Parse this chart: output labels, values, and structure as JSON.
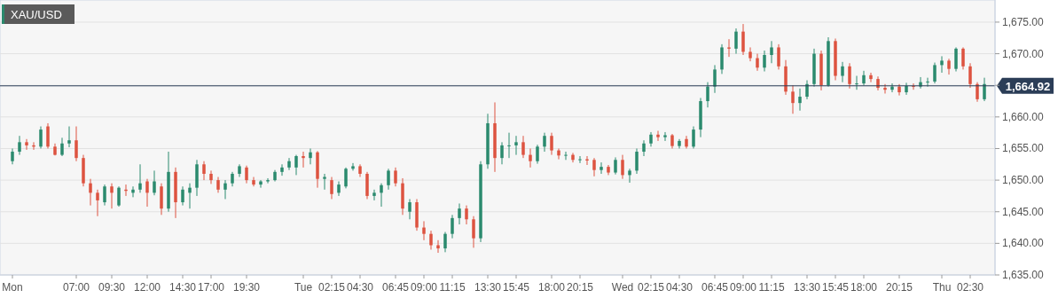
{
  "chart_data": {
    "type": "candlestick",
    "title": "XAU/USD",
    "categories": [
      "Mon",
      null,
      null,
      null,
      null,
      null,
      null,
      null,
      null,
      "07:00",
      null,
      null,
      null,
      null,
      "09:30",
      null,
      null,
      null,
      null,
      "12:00",
      null,
      null,
      null,
      null,
      "14:30",
      null,
      null,
      null,
      "17:00",
      null,
      null,
      null,
      null,
      "19:30",
      null,
      null,
      null,
      null,
      null,
      null,
      null,
      "Tue",
      null,
      null,
      null,
      "02:15",
      null,
      null,
      null,
      "04:30",
      null,
      null,
      null,
      null,
      "06:45",
      null,
      null,
      null,
      "09:00",
      null,
      null,
      null,
      "11:15",
      null,
      null,
      null,
      null,
      "13:30",
      null,
      null,
      null,
      "15:45",
      null,
      null,
      null,
      null,
      "18:00",
      null,
      null,
      null,
      "20:15",
      null,
      null,
      null,
      null,
      null,
      "Wed",
      null,
      null,
      null,
      "02:15",
      null,
      null,
      null,
      "04:30",
      null,
      null,
      null,
      null,
      "06:45",
      null,
      null,
      null,
      "09:00",
      null,
      null,
      null,
      "11:15",
      null,
      null,
      null,
      null,
      "13:30",
      null,
      null,
      null,
      "15:45",
      null,
      null,
      null,
      "18:00",
      null,
      null,
      null,
      null,
      "20:15",
      null,
      null,
      null,
      null,
      null,
      "Thu",
      null,
      null,
      null,
      "02:30",
      null,
      null
    ],
    "ohlc": [
      [
        1653,
        1655,
        1652.5,
        1654.5
      ],
      [
        1654.5,
        1657,
        1654,
        1656
      ],
      [
        1656,
        1656.5,
        1654.8,
        1655.5
      ],
      [
        1655.5,
        1656,
        1654.8,
        1655.3
      ],
      [
        1655.3,
        1658.5,
        1655,
        1658
      ],
      [
        1658.5,
        1659,
        1655,
        1655.3
      ],
      [
        1655.3,
        1655.8,
        1653.9,
        1654
      ],
      [
        1654,
        1656.7,
        1653.8,
        1655.8
      ],
      [
        1655.8,
        1658.5,
        1655.2,
        1656.3
      ],
      [
        1656.3,
        1658.5,
        1653,
        1653.5
      ],
      [
        1653.5,
        1654,
        1649,
        1649.5
      ],
      [
        1649.5,
        1650.2,
        1646,
        1648
      ],
      [
        1648,
        1648.5,
        1644.3,
        1646.8
      ],
      [
        1646.5,
        1649.3,
        1646,
        1649
      ],
      [
        1649,
        1649.5,
        1645.5,
        1648
      ],
      [
        1646,
        1649,
        1645.8,
        1648.8
      ],
      [
        1648.5,
        1649.3,
        1647.5,
        1648.3
      ],
      [
        1648,
        1649,
        1647.3,
        1648.5
      ],
      [
        1648.5,
        1652.5,
        1648,
        1649.5
      ],
      [
        1649.8,
        1650.2,
        1645.8,
        1648
      ],
      [
        1648,
        1651.5,
        1647.6,
        1649.8
      ],
      [
        1649,
        1649.5,
        1644.5,
        1645.5
      ],
      [
        1645.5,
        1654.5,
        1645,
        1651.3
      ],
      [
        1651.3,
        1652,
        1644,
        1646.5
      ],
      [
        1646.5,
        1649,
        1646,
        1648.5
      ],
      [
        1648,
        1649.5,
        1645.5,
        1648.8
      ],
      [
        1648.8,
        1653.2,
        1647.5,
        1652.5
      ],
      [
        1652.5,
        1653,
        1650,
        1651
      ],
      [
        1651,
        1651.5,
        1649.4,
        1650
      ],
      [
        1650,
        1650.5,
        1648,
        1648.5
      ],
      [
        1648.5,
        1650,
        1647,
        1649.5
      ],
      [
        1649.5,
        1651.3,
        1649,
        1651
      ],
      [
        1651,
        1652.5,
        1650.5,
        1652.2
      ],
      [
        1652,
        1652.3,
        1649.5,
        1650
      ],
      [
        1650,
        1650.5,
        1649,
        1649.3
      ],
      [
        1649.3,
        1650,
        1648.8,
        1649.8
      ],
      [
        1649.8,
        1650.3,
        1649.5,
        1650
      ],
      [
        1650,
        1651.6,
        1649.8,
        1651.3
      ],
      [
        1651.3,
        1652.5,
        1650.7,
        1652
      ],
      [
        1652,
        1653.5,
        1651.6,
        1653
      ],
      [
        1652,
        1654,
        1650.8,
        1653.8
      ],
      [
        1653.8,
        1654.5,
        1652,
        1653.5
      ],
      [
        1653.5,
        1655,
        1652.5,
        1654.4
      ],
      [
        1654.4,
        1654.6,
        1648.8,
        1650.2
      ],
      [
        1650.2,
        1651,
        1648.5,
        1650.5
      ],
      [
        1650,
        1650.5,
        1647,
        1647.8
      ],
      [
        1648,
        1649.8,
        1647.5,
        1649.3
      ],
      [
        1649,
        1652,
        1648.7,
        1651.8
      ],
      [
        1651.8,
        1652.7,
        1651.5,
        1652.2
      ],
      [
        1652.2,
        1652.5,
        1650.5,
        1651
      ],
      [
        1651,
        1651.3,
        1647,
        1647.5
      ],
      [
        1647.5,
        1648.5,
        1646.8,
        1648
      ],
      [
        1648,
        1649.5,
        1645.8,
        1649.2
      ],
      [
        1649.2,
        1651.8,
        1648.5,
        1651.5
      ],
      [
        1651.5,
        1652,
        1649,
        1649.5
      ],
      [
        1649.5,
        1650.3,
        1644.5,
        1645.5
      ],
      [
        1645,
        1647,
        1643.8,
        1646.5
      ],
      [
        1646.5,
        1647,
        1642,
        1642.5
      ],
      [
        1642.5,
        1643.5,
        1640.5,
        1641.5
      ],
      [
        1641.5,
        1642,
        1639,
        1639.7
      ],
      [
        1639.7,
        1640.5,
        1638.5,
        1639.2
      ],
      [
        1639.2,
        1641.8,
        1638.6,
        1641.5
      ],
      [
        1641.5,
        1644.5,
        1640.8,
        1644
      ],
      [
        1644,
        1646.3,
        1643,
        1645.5
      ],
      [
        1645.5,
        1646,
        1643,
        1643.8
      ],
      [
        1643.8,
        1644.3,
        1639.3,
        1640.8
      ],
      [
        1640.8,
        1653,
        1640.2,
        1652.5
      ],
      [
        1652.5,
        1660.5,
        1651.8,
        1659
      ],
      [
        1659,
        1662.3,
        1651.3,
        1653.5
      ],
      [
        1653.5,
        1656,
        1652.5,
        1655.5
      ],
      [
        1655.5,
        1657.5,
        1653.5,
        1655.5
      ],
      [
        1655.5,
        1657,
        1654,
        1656
      ],
      [
        1656,
        1657,
        1653.5,
        1654
      ],
      [
        1654,
        1655,
        1652,
        1653
      ],
      [
        1653,
        1655.6,
        1652.6,
        1655.3
      ],
      [
        1655.3,
        1657.5,
        1654.5,
        1657
      ],
      [
        1657,
        1657.5,
        1654,
        1654.7
      ],
      [
        1654.7,
        1655,
        1653.3,
        1653.9
      ],
      [
        1653.9,
        1654.5,
        1653.2,
        1654
      ],
      [
        1654,
        1654.3,
        1652.8,
        1653.2
      ],
      [
        1653.2,
        1653.8,
        1652.7,
        1653.3
      ],
      [
        1653.3,
        1653.8,
        1652.4,
        1653.1
      ],
      [
        1653.2,
        1653.5,
        1650.6,
        1651.6
      ],
      [
        1651.6,
        1652.8,
        1651,
        1652.1
      ],
      [
        1652.1,
        1652.4,
        1650.8,
        1651.2
      ],
      [
        1651.2,
        1653.6,
        1650.9,
        1653.2
      ],
      [
        1653.2,
        1654,
        1650.2,
        1650.8
      ],
      [
        1650.8,
        1651.8,
        1649.6,
        1651.5
      ],
      [
        1651.5,
        1655,
        1651,
        1654.5
      ],
      [
        1654.5,
        1656.3,
        1653.8,
        1655.8
      ],
      [
        1655.8,
        1657.6,
        1655.3,
        1657.2
      ],
      [
        1657.2,
        1657.8,
        1656.2,
        1656.8
      ],
      [
        1656.8,
        1657.6,
        1656.2,
        1657.1
      ],
      [
        1657.1,
        1657.3,
        1655,
        1655.4
      ],
      [
        1655.4,
        1656.5,
        1655,
        1656.2
      ],
      [
        1656.5,
        1657,
        1655,
        1655.3
      ],
      [
        1655.3,
        1658.5,
        1655,
        1658
      ],
      [
        1658,
        1663,
        1656.8,
        1662.5
      ],
      [
        1662.5,
        1665.5,
        1661.5,
        1664.8
      ],
      [
        1664.8,
        1668.2,
        1663.8,
        1667.5
      ],
      [
        1667.5,
        1671.5,
        1666.8,
        1671
      ],
      [
        1671,
        1672.3,
        1669.5,
        1670.8
      ],
      [
        1670.8,
        1674,
        1670,
        1673.5
      ],
      [
        1673.5,
        1674.7,
        1669.8,
        1670.3
      ],
      [
        1670.3,
        1671,
        1668.8,
        1669.3
      ],
      [
        1669.3,
        1670,
        1667.3,
        1667.8
      ],
      [
        1667.8,
        1670.5,
        1667.2,
        1669.8
      ],
      [
        1669.8,
        1672,
        1668.5,
        1671
      ],
      [
        1671,
        1671.5,
        1667.5,
        1668
      ],
      [
        1668,
        1669,
        1663.5,
        1664
      ],
      [
        1664,
        1665,
        1660.5,
        1662.2
      ],
      [
        1662.2,
        1664.5,
        1661,
        1663.2
      ],
      [
        1663.2,
        1665.8,
        1662.8,
        1665.2
      ],
      [
        1665.2,
        1670.8,
        1664.8,
        1670
      ],
      [
        1670,
        1670.5,
        1664.2,
        1665
      ],
      [
        1665,
        1672.6,
        1664.8,
        1672
      ],
      [
        1672,
        1672.4,
        1665.8,
        1666.5
      ],
      [
        1666.5,
        1668.7,
        1665.5,
        1668
      ],
      [
        1668,
        1668.5,
        1664.5,
        1665.2
      ],
      [
        1665.2,
        1666.5,
        1664.3,
        1665.3
      ],
      [
        1665.3,
        1667.3,
        1665,
        1666.6
      ],
      [
        1666.6,
        1667,
        1665.5,
        1666
      ],
      [
        1666,
        1666.4,
        1664.2,
        1664.6
      ],
      [
        1664.6,
        1665.2,
        1663.7,
        1664.3
      ],
      [
        1664.3,
        1665.3,
        1663.9,
        1664.8
      ],
      [
        1664.8,
        1665.2,
        1663.4,
        1663.9
      ],
      [
        1663.9,
        1665.4,
        1663.5,
        1664.9
      ],
      [
        1664.9,
        1665.3,
        1664.3,
        1664.8
      ],
      [
        1664.8,
        1666.3,
        1664.5,
        1665.5
      ],
      [
        1665.5,
        1666.2,
        1664.8,
        1665.6
      ],
      [
        1665.6,
        1668.6,
        1665.3,
        1668.2
      ],
      [
        1668.2,
        1669.6,
        1667,
        1668.9
      ],
      [
        1668.9,
        1669.2,
        1666.7,
        1667.6
      ],
      [
        1667.6,
        1671,
        1667.2,
        1670.8
      ],
      [
        1670.8,
        1671,
        1667.5,
        1668
      ],
      [
        1668,
        1668.5,
        1664.6,
        1665.2
      ],
      [
        1665.2,
        1665.5,
        1662.4,
        1662.8
      ],
      [
        1662.8,
        1666.2,
        1662.5,
        1665.2
      ]
    ],
    "ylim": [
      1635,
      1678.5
    ],
    "yticks": [
      {
        "value": 1635,
        "label": "1,635.00"
      },
      {
        "value": 1640,
        "label": "1,640.00"
      },
      {
        "value": 1645,
        "label": "1,645.00"
      },
      {
        "value": 1650,
        "label": "1,650.00"
      },
      {
        "value": 1655,
        "label": "1,655.00"
      },
      {
        "value": 1660,
        "label": "1,660.00"
      },
      {
        "value": 1665,
        "label": null
      },
      {
        "value": 1670,
        "label": "1,670.00"
      },
      {
        "value": 1675,
        "label": "1,675.00"
      }
    ],
    "grid": "y",
    "ref_lines": [
      {
        "axis": "y",
        "value": 1664.92,
        "label": "1,664.92",
        "color": "#2b3d57"
      }
    ]
  }
}
